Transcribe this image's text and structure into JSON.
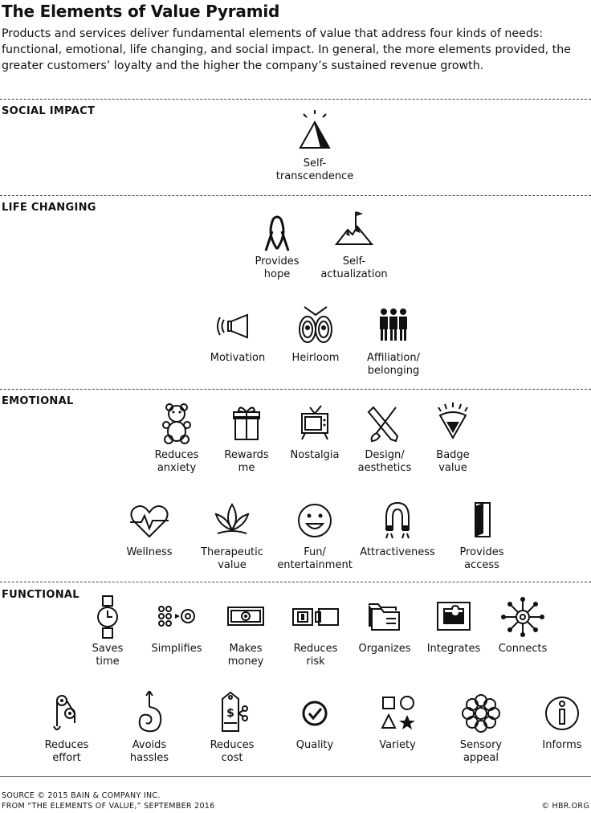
{
  "title": "The Elements of Value Pyramid",
  "intro": "Products and services deliver fundamental elements of value that address four kinds of needs: functional, emotional, life changing, and social impact. In general, the more elements provided, the greater customers’ loyalty and the higher the company’s sustained revenue growth.",
  "sections": {
    "social_impact": "SOCIAL IMPACT",
    "life_changing": "LIFE CHANGING",
    "emotional": "EMOTIONAL",
    "functional": "FUNCTIONAL"
  },
  "elements": {
    "self_transcendence": {
      "label": "Self-\ntranscendence",
      "icon": "pyramid-sun-icon"
    },
    "provides_hope": {
      "label": "Provides\nhope",
      "icon": "ribbon-icon"
    },
    "self_actualization": {
      "label": "Self-\nactualization",
      "icon": "mountain-flag-icon"
    },
    "motivation": {
      "label": "Motivation",
      "icon": "megaphone-icon"
    },
    "heirloom": {
      "label": "Heirloom",
      "icon": "locket-icon"
    },
    "affiliation": {
      "label": "Affiliation/\nbelonging",
      "icon": "group-icon"
    },
    "reduces_anxiety": {
      "label": "Reduces\nanxiety",
      "icon": "teddy-bear-icon"
    },
    "rewards_me": {
      "label": "Rewards\nme",
      "icon": "gift-icon"
    },
    "nostalgia": {
      "label": "Nostalgia",
      "icon": "tv-icon"
    },
    "design": {
      "label": "Design/\naesthetics",
      "icon": "pencil-brush-icon"
    },
    "badge_value": {
      "label": "Badge\nvalue",
      "icon": "badge-icon"
    },
    "wellness": {
      "label": "Wellness",
      "icon": "heartbeat-icon"
    },
    "therapeutic": {
      "label": "Therapeutic\nvalue",
      "icon": "lotus-icon"
    },
    "fun": {
      "label": "Fun/\nentertainment",
      "icon": "smiley-icon"
    },
    "attractiveness": {
      "label": "Attractiveness",
      "icon": "magnet-icon"
    },
    "provides_access": {
      "label": "Provides\naccess",
      "icon": "door-icon"
    },
    "saves_time": {
      "label": "Saves\ntime",
      "icon": "watch-icon"
    },
    "simplifies": {
      "label": "Simplifies",
      "icon": "dots-to-circle-icon"
    },
    "makes_money": {
      "label": "Makes\nmoney",
      "icon": "banknote-icon"
    },
    "reduces_risk": {
      "label": "Reduces\nrisk",
      "icon": "seatbelt-icon"
    },
    "organizes": {
      "label": "Organizes",
      "icon": "folders-icon"
    },
    "integrates": {
      "label": "Integrates",
      "icon": "puzzle-icon"
    },
    "connects": {
      "label": "Connects",
      "icon": "network-icon"
    },
    "reduces_effort": {
      "label": "Reduces\neffort",
      "icon": "pulley-icon"
    },
    "avoids_hassles": {
      "label": "Avoids\nhassles",
      "icon": "swirl-arrow-icon"
    },
    "reduces_cost": {
      "label": "Reduces\ncost",
      "icon": "price-tag-scissors-icon"
    },
    "quality": {
      "label": "Quality",
      "icon": "check-circle-icon"
    },
    "variety": {
      "label": "Variety",
      "icon": "shapes-icon"
    },
    "sensory_appeal": {
      "label": "Sensory\nappeal",
      "icon": "flower-icon"
    },
    "informs": {
      "label": "Informs",
      "icon": "info-icon"
    }
  },
  "footer": {
    "source": "SOURCE   © 2015 BAIN & COMPANY INC.",
    "from": "FROM   “THE ELEMENTS OF VALUE,” SEPTEMBER 2016",
    "credit": "© HBR.ORG"
  }
}
